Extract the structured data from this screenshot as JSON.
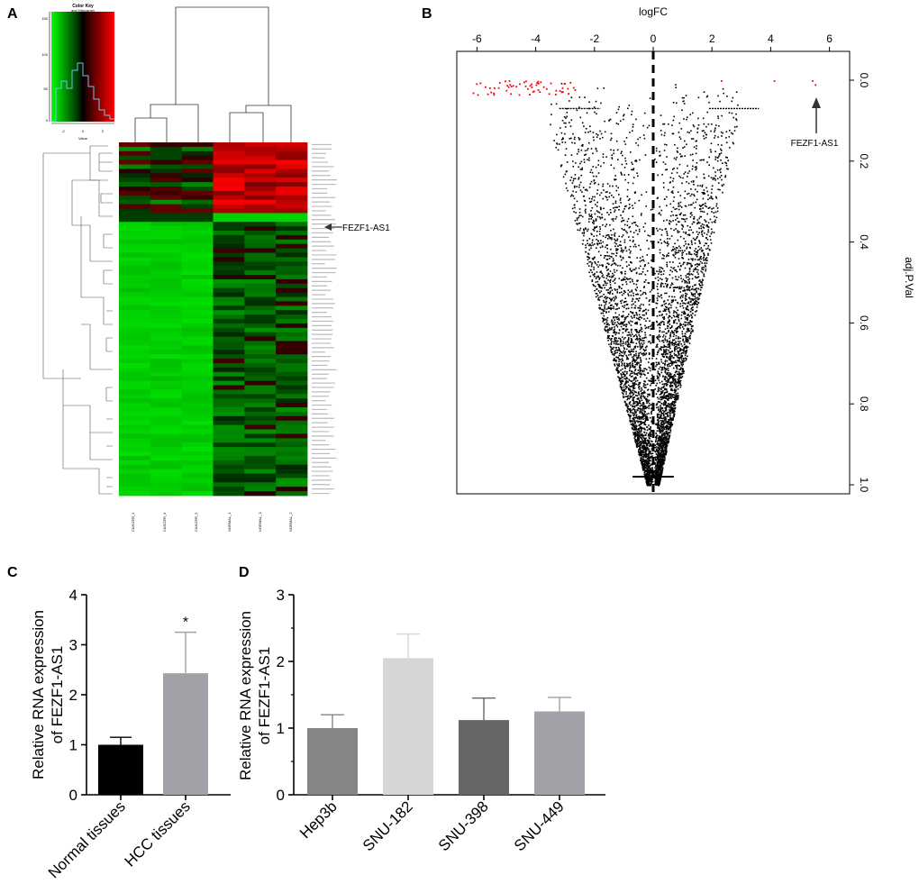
{
  "panels": {
    "A": {
      "label": "A",
      "chart_data": {
        "type": "heatmap",
        "title": "",
        "color_key": {
          "title": "Color Key",
          "subtitle": "and Histogram",
          "x_label": "Value",
          "x_ticks": [
            "-2",
            "0",
            "2"
          ],
          "y_ticks": [
            "0",
            "50",
            "100",
            "150"
          ],
          "low_color": "#00ff00",
          "mid_color": "#000000",
          "high_color": "#ff0000"
        },
        "columns": [
          "CANCER_1",
          "CANCER_3",
          "CANCER_2",
          "NORMAL_1",
          "NORMAL_3",
          "NORMAL_2"
        ],
        "highlighted_gene": "FEZF1-AS1"
      }
    },
    "B": {
      "label": "B",
      "chart_data": {
        "type": "scatter",
        "title": "",
        "xlabel": "logFC",
        "ylabel": "adj.P.Val",
        "xlim": [
          -7,
          7
        ],
        "ylim": [
          1.02,
          -0.05
        ],
        "x_ticks": [
          -6,
          -4,
          -2,
          0,
          2,
          4,
          6
        ],
        "y_ticks": [
          0.0,
          0.2,
          0.4,
          0.6,
          0.8,
          1.0
        ],
        "y_tick_labels": [
          "0.0",
          "0.2",
          "0.4",
          "0.6",
          "0.8",
          "1.0"
        ],
        "annotation": "FEZF1-AS1",
        "annotated_point": {
          "x": 5.5,
          "y": 0.01
        },
        "significant_color": "#ff0000",
        "point_color": "#000000"
      }
    },
    "C": {
      "label": "C",
      "chart_data": {
        "type": "bar",
        "categories": [
          "Normal tissues",
          "HCC tissues"
        ],
        "values": [
          1.0,
          2.43
        ],
        "errors": [
          0.15,
          0.82
        ],
        "colors": [
          "#000000",
          "#a1a1a8"
        ],
        "significance": [
          "",
          "*"
        ],
        "ylabel_line1": "Relative RNA expression",
        "ylabel_line2": "of FEZF1-AS1",
        "xlabel": "",
        "ylim": [
          0,
          4
        ],
        "y_ticks": [
          "0",
          "1",
          "2",
          "3",
          "4"
        ]
      }
    },
    "D": {
      "label": "D",
      "chart_data": {
        "type": "bar",
        "categories": [
          "Hep3b",
          "SNU-182",
          "SNU-398",
          "SNU-449"
        ],
        "values": [
          1.0,
          2.05,
          1.12,
          1.25
        ],
        "errors": [
          0.2,
          0.36,
          0.33,
          0.21
        ],
        "colors": [
          "#858585",
          "#d6d6d6",
          "#666666",
          "#a1a1a8"
        ],
        "ylabel_line1": "Relative RNA expression",
        "ylabel_line2": "of FEZF1-AS1",
        "xlabel": "",
        "ylim": [
          0,
          3
        ],
        "y_ticks": [
          "0",
          "1",
          "2",
          "3"
        ]
      }
    }
  }
}
